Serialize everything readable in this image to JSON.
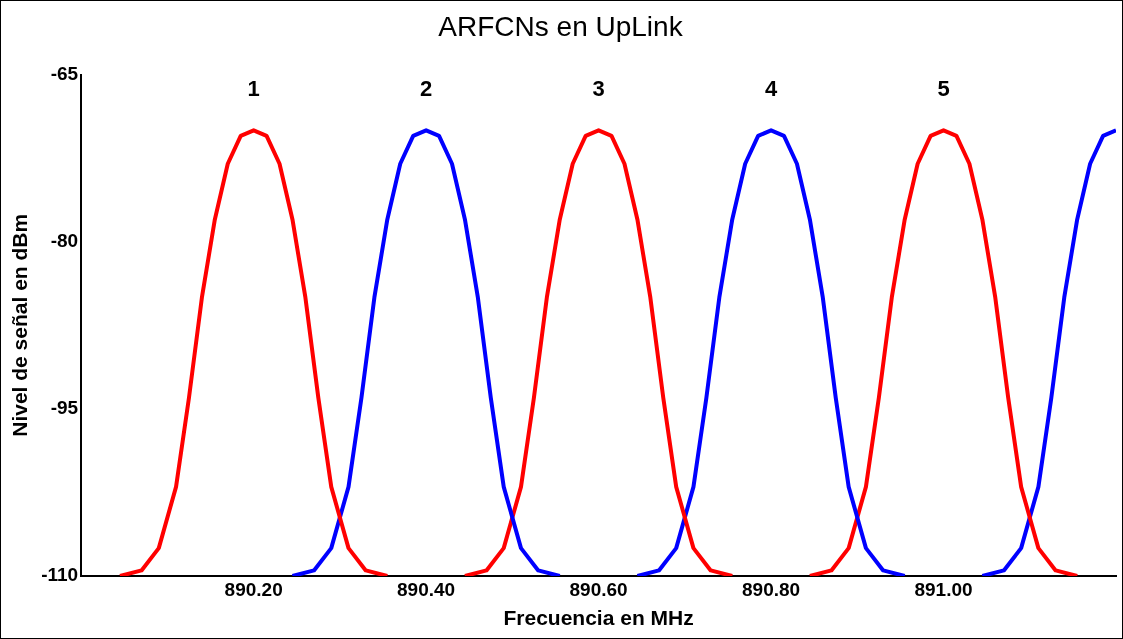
{
  "chart_data": {
    "type": "line",
    "title": "ARFCNs en UpLink",
    "xlabel": "Frecuencia en MHz",
    "ylabel": "Nivel de señal en dBm",
    "xlim": [
      890.0,
      891.2
    ],
    "ylim": [
      -110,
      -65
    ],
    "xticks": [
      {
        "value": 890.2,
        "label": "890.20"
      },
      {
        "value": 890.4,
        "label": "890.40"
      },
      {
        "value": 890.6,
        "label": "890.60"
      },
      {
        "value": 890.8,
        "label": "890.80"
      },
      {
        "value": 891.0,
        "label": "891.00"
      }
    ],
    "yticks": [
      -110,
      -95,
      -80,
      -65
    ],
    "grid": false,
    "legend": false,
    "marker": "none",
    "line_style": "solid",
    "annotations": [
      {
        "text": "1",
        "x": 890.2,
        "y": -70
      },
      {
        "text": "2",
        "x": 890.4,
        "y": -70
      },
      {
        "text": "3",
        "x": 890.6,
        "y": -70
      },
      {
        "text": "4",
        "x": 890.8,
        "y": -70
      },
      {
        "text": "5",
        "x": 891.0,
        "y": -70
      }
    ],
    "series": [
      {
        "color": "#ff0000",
        "x": [
          890.045,
          890.07,
          890.09,
          890.11,
          890.125,
          890.14,
          890.155,
          890.17,
          890.185,
          890.2,
          890.215,
          890.23,
          890.245,
          890.26,
          890.275,
          890.29,
          890.31,
          890.33,
          890.355
        ],
        "values": [
          -110,
          -109.5,
          -107.5,
          -102,
          -94,
          -85,
          -78,
          -73,
          -70.5,
          -70,
          -70.5,
          -73,
          -78,
          -85,
          -94,
          -102,
          -107.5,
          -109.5,
          -110
        ]
      },
      {
        "color": "#0000ff",
        "x": [
          890.245,
          890.27,
          890.29,
          890.31,
          890.325,
          890.34,
          890.355,
          890.37,
          890.385,
          890.4,
          890.415,
          890.43,
          890.445,
          890.46,
          890.475,
          890.49,
          890.51,
          890.53,
          890.555
        ],
        "values": [
          -110,
          -109.5,
          -107.5,
          -102,
          -94,
          -85,
          -78,
          -73,
          -70.5,
          -70,
          -70.5,
          -73,
          -78,
          -85,
          -94,
          -102,
          -107.5,
          -109.5,
          -110
        ]
      },
      {
        "color": "#ff0000",
        "x": [
          890.445,
          890.47,
          890.49,
          890.51,
          890.525,
          890.54,
          890.555,
          890.57,
          890.585,
          890.6,
          890.615,
          890.63,
          890.645,
          890.66,
          890.675,
          890.69,
          890.71,
          890.73,
          890.755
        ],
        "values": [
          -110,
          -109.5,
          -107.5,
          -102,
          -94,
          -85,
          -78,
          -73,
          -70.5,
          -70,
          -70.5,
          -73,
          -78,
          -85,
          -94,
          -102,
          -107.5,
          -109.5,
          -110
        ]
      },
      {
        "color": "#0000ff",
        "x": [
          890.645,
          890.67,
          890.69,
          890.71,
          890.725,
          890.74,
          890.755,
          890.77,
          890.785,
          890.8,
          890.815,
          890.83,
          890.845,
          890.86,
          890.875,
          890.89,
          890.91,
          890.93,
          890.955
        ],
        "values": [
          -110,
          -109.5,
          -107.5,
          -102,
          -94,
          -85,
          -78,
          -73,
          -70.5,
          -70,
          -70.5,
          -73,
          -78,
          -85,
          -94,
          -102,
          -107.5,
          -109.5,
          -110
        ]
      },
      {
        "color": "#ff0000",
        "x": [
          890.845,
          890.87,
          890.89,
          890.91,
          890.925,
          890.94,
          890.955,
          890.97,
          890.985,
          891.0,
          891.015,
          891.03,
          891.045,
          891.06,
          891.075,
          891.09,
          891.11,
          891.13,
          891.155
        ],
        "values": [
          -110,
          -109.5,
          -107.5,
          -102,
          -94,
          -85,
          -78,
          -73,
          -70.5,
          -70,
          -70.5,
          -73,
          -78,
          -85,
          -94,
          -102,
          -107.5,
          -109.5,
          -110
        ]
      },
      {
        "color": "#0000ff",
        "x": [
          891.045,
          891.07,
          891.09,
          891.11,
          891.125,
          891.14,
          891.155,
          891.17,
          891.185,
          891.2
        ],
        "values": [
          -110,
          -109.5,
          -107.5,
          -102,
          -94,
          -85,
          -78,
          -73,
          -70.5,
          -70
        ]
      }
    ]
  }
}
